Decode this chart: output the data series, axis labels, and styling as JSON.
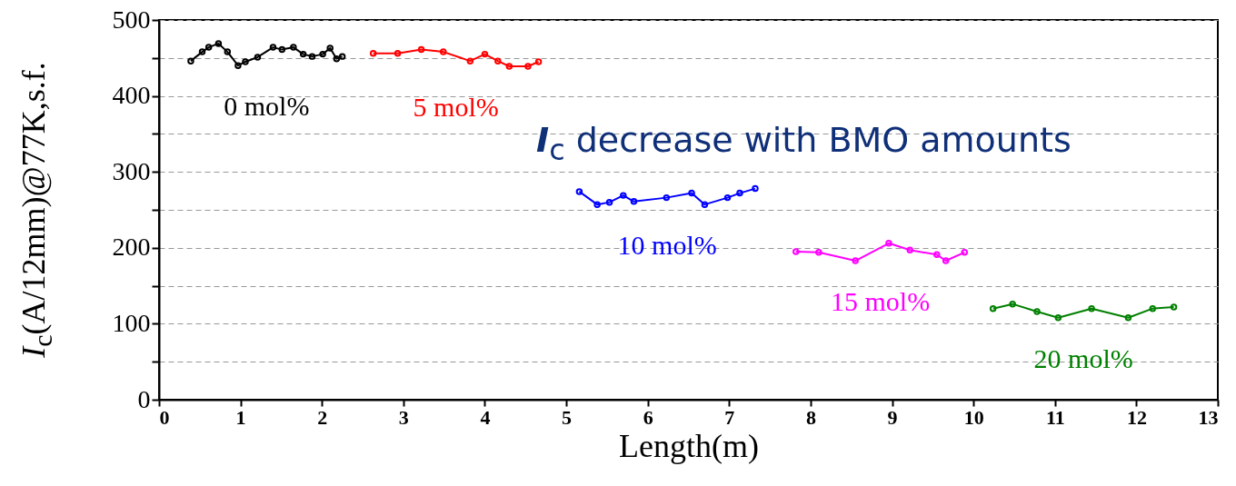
{
  "chart_data": {
    "type": "line",
    "xlabel": "Length(m)",
    "ylabel": "I$_{c}$(A/12mm)@77K,s.f.",
    "annotations": [
      "I$_{c}$ decrease with BMO amounts"
    ],
    "xlim": [
      0,
      13
    ],
    "xticks": [
      0,
      1,
      2,
      3,
      4,
      5,
      6,
      7,
      8,
      9,
      10,
      11,
      12,
      13
    ],
    "ylim": [
      0,
      500
    ],
    "yticks": [
      0,
      {
        "value": 50,
        "label": null
      },
      100,
      {
        "value": 150,
        "label": null
      },
      200,
      {
        "value": 250,
        "label": null
      },
      300,
      {
        "value": 350,
        "label": null
      },
      400,
      {
        "value": 450,
        "label": null
      },
      500
    ],
    "grid": "y",
    "marker": "circle",
    "line_style": "solid",
    "legend": false,
    "series": [
      {
        "name": "0 mol%",
        "color": "#000000",
        "x": [
          0.39,
          0.53,
          0.61,
          0.73,
          0.84,
          0.97,
          1.06,
          1.21,
          1.4,
          1.51,
          1.65,
          1.77,
          1.88,
          2.01,
          2.1,
          2.18,
          2.25
        ],
        "values": [
          446,
          458,
          464,
          469,
          458,
          440,
          445,
          451,
          464,
          461,
          464,
          455,
          452,
          455,
          463,
          449,
          452
        ]
      },
      {
        "name": "5 mol%",
        "color": "#ff0000",
        "x": [
          2.63,
          2.93,
          3.22,
          3.49,
          3.82,
          4.0,
          4.16,
          4.3,
          4.53,
          4.66
        ],
        "values": [
          456,
          456,
          461,
          458,
          446,
          455,
          446,
          439,
          439,
          445
        ]
      },
      {
        "name": "10 mol%",
        "color": "#0000ff",
        "x": [
          5.16,
          5.38,
          5.53,
          5.7,
          5.83,
          6.23,
          6.54,
          6.7,
          6.98,
          7.13,
          7.32
        ],
        "values": [
          274,
          257,
          260,
          269,
          261,
          266,
          272,
          257,
          266,
          272,
          278
        ]
      },
      {
        "name": "15 mol%",
        "color": "#ff00ff",
        "x": [
          7.82,
          8.1,
          8.55,
          8.96,
          9.22,
          9.55,
          9.66,
          9.89
        ],
        "values": [
          195,
          194,
          183,
          206,
          197,
          191,
          183,
          194
        ]
      },
      {
        "name": "20 mol%",
        "color": "#008000",
        "x": [
          10.24,
          10.48,
          10.78,
          11.04,
          11.45,
          11.9,
          12.2,
          12.46
        ],
        "values": [
          120,
          126,
          116,
          108,
          120,
          108,
          120,
          122
        ]
      }
    ]
  }
}
